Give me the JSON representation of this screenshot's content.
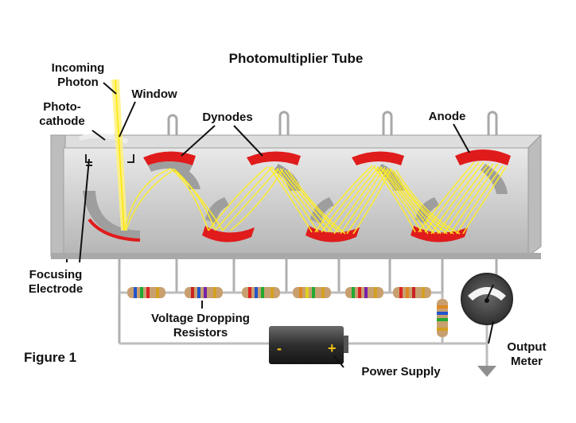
{
  "title": "Photomultiplier Tube",
  "figure_label": "Figure 1",
  "labels": {
    "incoming_photon": [
      "Incoming",
      "Photon"
    ],
    "window": "Window",
    "photocathode": [
      "Photo-",
      "cathode"
    ],
    "dynodes": "Dynodes",
    "anode": "Anode",
    "focusing_electrode": [
      "Focusing",
      "Electrode"
    ],
    "resistors": [
      "Voltage Dropping",
      "Resistors"
    ],
    "power_supply": "Power Supply",
    "output_meter": [
      "Output",
      "Meter"
    ],
    "battery_minus": "-",
    "battery_plus": "+"
  },
  "colors": {
    "tube": "#c9c9c9",
    "dynode": "#e01b1b",
    "beam": "#ffee22",
    "wire": "#bdbdbd",
    "meter": "#4a4a4a"
  },
  "icons": [
    "photomultiplier-tube-diagram",
    "resistor-icon",
    "battery-icon",
    "output-meter-icon",
    "ground-arrow-icon"
  ]
}
